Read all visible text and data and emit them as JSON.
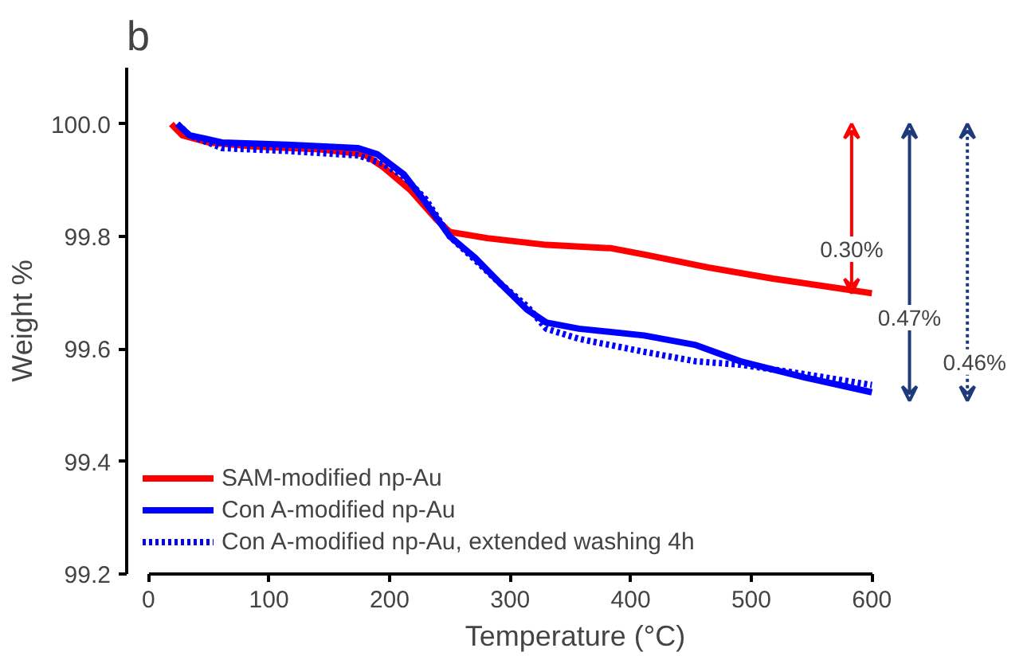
{
  "chart_data": {
    "type": "line",
    "title": "b",
    "xlabel": "Temperature (°C)",
    "ylabel": "Weight %",
    "xlim": [
      0,
      600
    ],
    "ylim": [
      99.2,
      100.1
    ],
    "xticks": [
      0,
      100,
      200,
      300,
      400,
      500,
      600
    ],
    "yticks": [
      {
        "value": 99.2,
        "label": "99.2"
      },
      {
        "value": 99.4,
        "label": "99.4"
      },
      {
        "value": 99.6,
        "label": "99.6"
      },
      {
        "value": 99.8,
        "label": "99.8"
      },
      {
        "value": 100.0,
        "label": "100.0"
      }
    ],
    "grid": false,
    "legend": "bottom left",
    "series": [
      {
        "name": "SAM-modified np-Au",
        "color": "#ff0000",
        "line_style": "solid",
        "x": [
          19,
          28,
          50,
          88,
          142,
          179,
          195,
          217,
          239,
          250,
          281,
          330,
          384,
          411,
          464,
          518,
          572,
          600
        ],
        "values": [
          100.0,
          99.98,
          99.967,
          99.96,
          99.955,
          99.946,
          99.923,
          99.883,
          99.83,
          99.808,
          99.797,
          99.785,
          99.779,
          99.768,
          99.745,
          99.725,
          99.708,
          99.699
        ]
      },
      {
        "name": "Con A-modified np-Au",
        "color": "#0000ff",
        "line_style": "solid",
        "x": [
          24,
          34,
          61,
          115,
          174,
          190,
          212,
          230,
          250,
          271,
          292,
          314,
          330,
          357,
          411,
          454,
          491,
          545,
          600
        ],
        "values": [
          100.0,
          99.98,
          99.967,
          99.963,
          99.957,
          99.946,
          99.91,
          99.86,
          99.8,
          99.762,
          99.716,
          99.67,
          99.647,
          99.636,
          99.624,
          99.607,
          99.578,
          99.549,
          99.523
        ]
      },
      {
        "name": "Con A-modified np-Au, extended washing 4h",
        "color": "#0000ff",
        "line_style": "dotted",
        "x": [
          24,
          34,
          61,
          115,
          174,
          195,
          212,
          230,
          250,
          292,
          314,
          330,
          357,
          411,
          454,
          491,
          545,
          600
        ],
        "values": [
          100.0,
          99.98,
          99.957,
          99.952,
          99.944,
          99.929,
          99.906,
          99.866,
          99.8,
          99.716,
          99.676,
          99.636,
          99.618,
          99.595,
          99.578,
          99.572,
          99.555,
          99.536
        ]
      }
    ],
    "annotations": [
      "0.30%",
      "0.47%",
      "0.46%"
    ]
  }
}
